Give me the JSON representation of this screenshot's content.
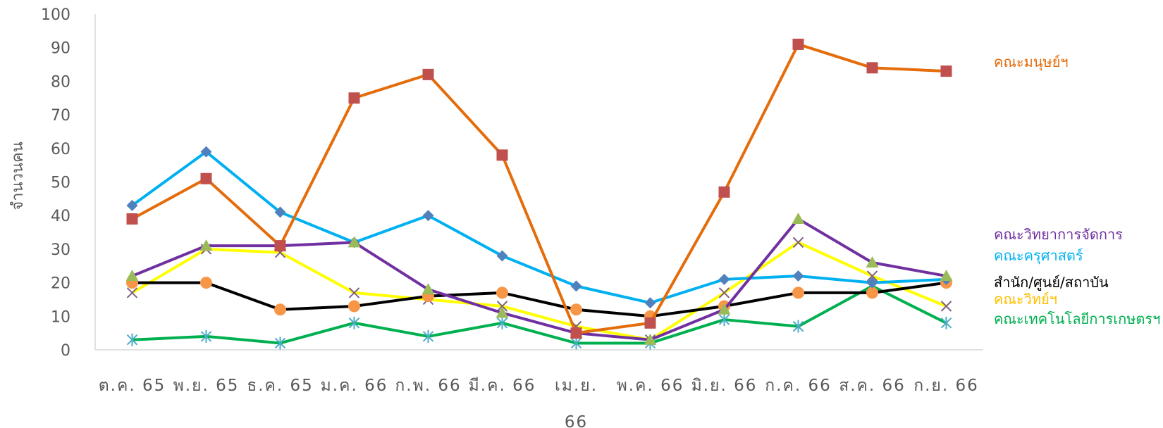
{
  "chart_data": {
    "type": "line",
    "title": "",
    "xlabel": "",
    "ylabel": "จำนวนคน",
    "ylim": [
      0,
      100
    ],
    "yticks": [
      0,
      10,
      20,
      30,
      40,
      50,
      60,
      70,
      80,
      90,
      100
    ],
    "grid": false,
    "legend": "right",
    "categories": [
      [
        "ต.ค. 65"
      ],
      [
        "พ.ย. 65"
      ],
      [
        "ธ.ค. 65"
      ],
      [
        "ม.ค. 66"
      ],
      [
        "ก.พ. 66"
      ],
      [
        "มี.ค. 66"
      ],
      [
        "เม.ย.",
        "66"
      ],
      [
        "พ.ค. 66"
      ],
      [
        "มิ.ย. 66"
      ],
      [
        "ก.ค. 66"
      ],
      [
        "ส.ค. 66"
      ],
      [
        "ก.ย. 66"
      ]
    ],
    "series": [
      {
        "name": "คณะมนุษย์ฯ",
        "color": "#E46C0A",
        "marker": "square",
        "marker_color": "#C0504D",
        "values": [
          39,
          51,
          31,
          75,
          82,
          58,
          5,
          8,
          47,
          91,
          84,
          83
        ]
      },
      {
        "name": "คณะวิทยาการจัดการ",
        "color": "#7030A0",
        "marker": "triangle",
        "marker_color": "#9BBB59",
        "values": [
          22,
          31,
          31,
          32,
          18,
          11,
          5,
          3,
          12,
          39,
          26,
          22
        ]
      },
      {
        "name": "คณะครุศาสตร์",
        "color": "#00B0F0",
        "marker": "diamond",
        "marker_color": "#4F81BD",
        "values": [
          43,
          59,
          41,
          32,
          40,
          28,
          19,
          14,
          21,
          22,
          20,
          21
        ]
      },
      {
        "name": "สำนัก/ศูนย์/สถาบัน",
        "color": "#000000",
        "marker": "circle",
        "marker_color": "#F79646",
        "values": [
          20,
          20,
          12,
          13,
          16,
          17,
          12,
          10,
          13,
          17,
          17,
          20
        ]
      },
      {
        "name": "คณะวิทย์ฯ",
        "color": "#FFFF00",
        "marker": "x",
        "marker_color": "#7F6084",
        "values": [
          17,
          30,
          29,
          17,
          15,
          13,
          7,
          3,
          17,
          32,
          22,
          13
        ]
      },
      {
        "name": "คณะเทคโนโลยีการเกษตรฯ",
        "color": "#00B050",
        "marker": "star",
        "marker_color": "#4BACC6",
        "values": [
          3,
          4,
          2,
          8,
          4,
          8,
          2,
          2,
          9,
          7,
          19,
          8
        ]
      }
    ],
    "legend_label_colors": {
      "คณะมนุษย์ฯ": "#E46C0A",
      "คณะวิทยาการจัดการ": "#7030A0",
      "คณะครุศาสตร์": "#00B0F0",
      "สำนัก/ศูนย์/สถาบัน": "#000000",
      "คณะวิทย์ฯ": "#FFC000",
      "คณะเทคโนโลยีการเกษตรฯ": "#00B050"
    }
  }
}
